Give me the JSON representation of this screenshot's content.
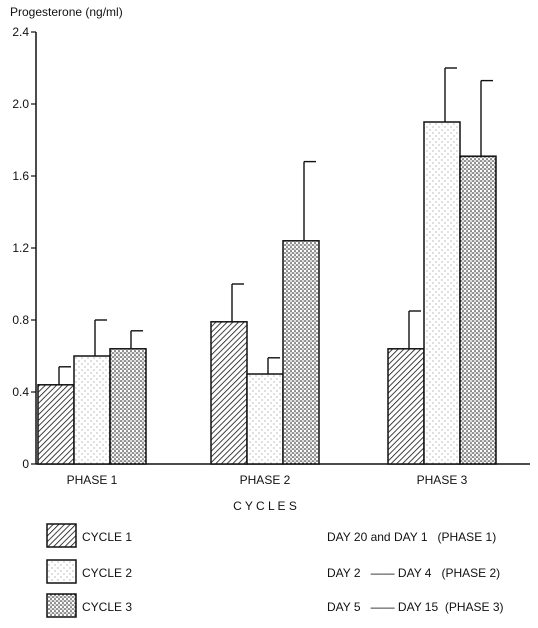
{
  "chart_data": {
    "type": "bar",
    "ylabel": "Progesterone (ng/ml)",
    "xlabel": "C Y C L E S",
    "ylim": [
      0,
      2.4
    ],
    "yticks": [
      "0",
      "0.4",
      "0.8",
      "1.2",
      "1.6",
      "2.0",
      "2.4"
    ],
    "ytick_values": [
      0,
      0.4,
      0.8,
      1.2,
      1.6,
      2.0,
      2.4
    ],
    "categories": [
      "PHASE 1",
      "PHASE 2",
      "PHASE 3"
    ],
    "series": [
      {
        "name": "CYCLE 1",
        "values": [
          0.44,
          0.79,
          0.64
        ],
        "errors": [
          0.1,
          0.21,
          0.21
        ]
      },
      {
        "name": "CYCLE 2",
        "values": [
          0.6,
          0.5,
          1.9
        ],
        "errors": [
          0.2,
          0.09,
          0.3
        ]
      },
      {
        "name": "CYCLE 3",
        "values": [
          0.64,
          1.24,
          1.71
        ],
        "errors": [
          0.1,
          0.44,
          0.42
        ]
      }
    ],
    "grid": false,
    "legend_position": "bottom"
  },
  "legend_notes": [
    "DAY 20 and DAY 1   (PHASE 1)",
    "DAY 2   —— DAY 4   (PHASE 2)",
    "DAY 5   —— DAY 15  (PHASE 3)"
  ]
}
